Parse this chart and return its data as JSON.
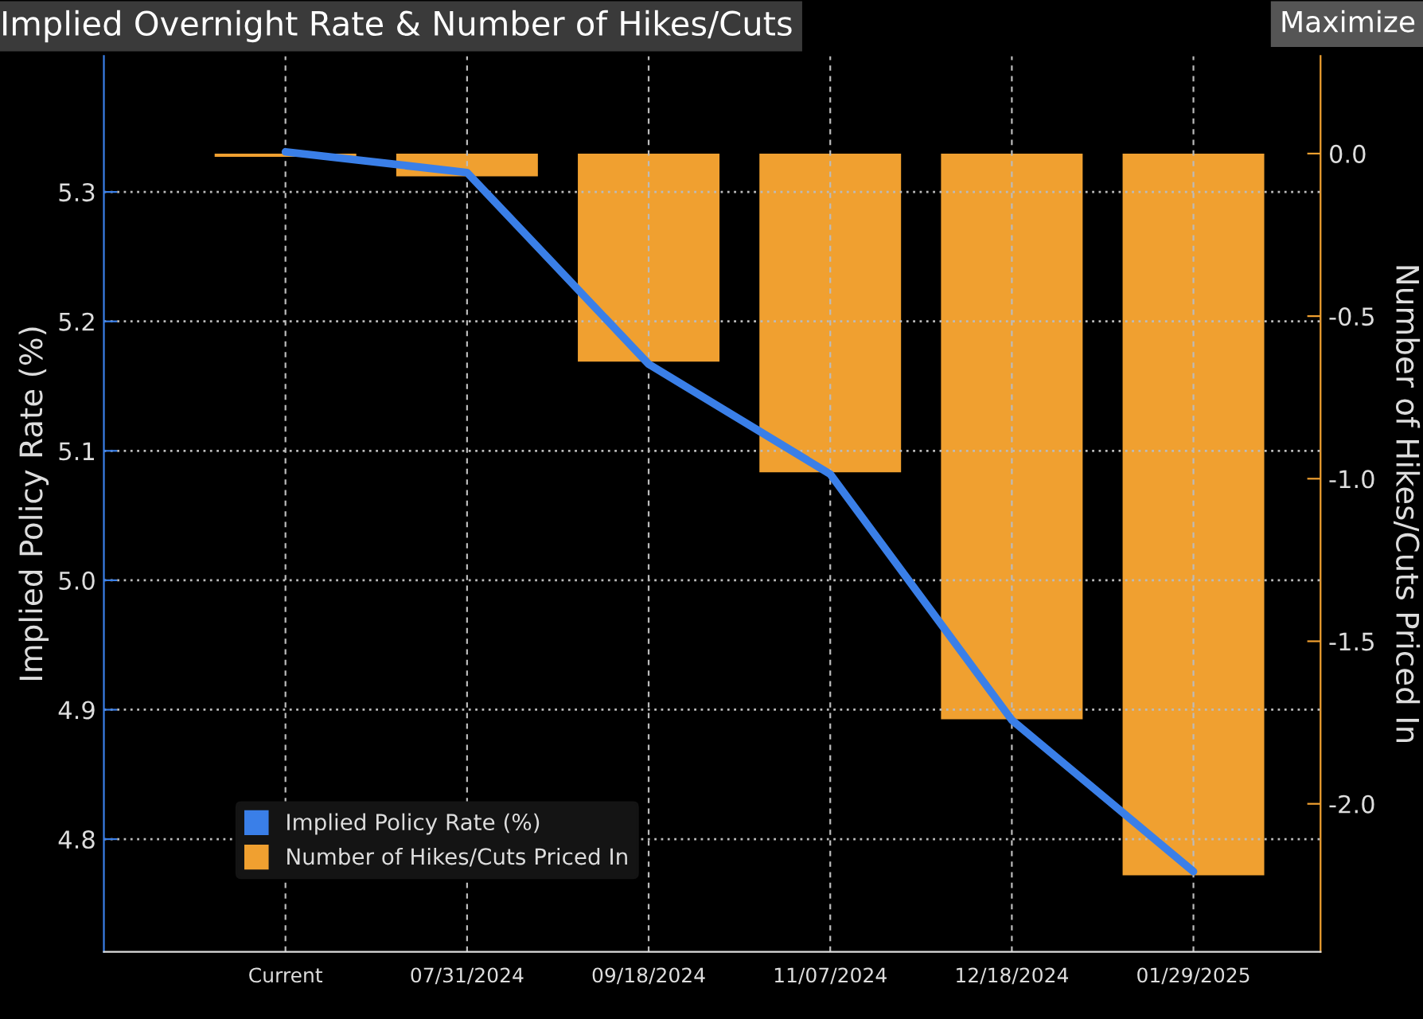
{
  "chart_data": {
    "type": "line",
    "title": "Implied Overnight Rate & Number of Hikes/Cuts",
    "ylabel": "Implied Policy Rate (%)",
    "y2label": "Number of Hikes/Cuts Priced In",
    "categories": [
      "Current",
      "07/31/2024",
      "09/18/2024",
      "11/07/2024",
      "12/18/2024",
      "01/29/2025"
    ],
    "series": [
      {
        "name": "Implied Policy Rate (%)",
        "color": "#3a7fe8",
        "values": [
          5.331,
          5.315,
          5.167,
          5.082,
          4.892,
          4.775
        ]
      },
      {
        "name": "Number of Hikes/Cuts Priced In",
        "type": "bar",
        "axis": "y2",
        "color": "#f0a030",
        "values": [
          -0.01,
          -0.07,
          -0.64,
          -0.98,
          -1.74,
          -2.22
        ]
      }
    ],
    "ylim": [
      4.713,
      5.405
    ],
    "yticks": [
      4.8,
      4.9,
      {
        "value": 5,
        "label": "5.0"
      },
      5.1,
      5.2,
      5.3
    ],
    "y2lim": [
      -2.455,
      0.3
    ],
    "y2ticks": [
      {
        "value": -2,
        "label": "-2.0"
      },
      -1.5,
      {
        "value": -1,
        "label": "-1.0"
      },
      -0.5,
      {
        "value": 0,
        "label": "0.0"
      }
    ],
    "grid": true,
    "legend": "bottom left",
    "annotations": [
      "Maximize"
    ]
  }
}
